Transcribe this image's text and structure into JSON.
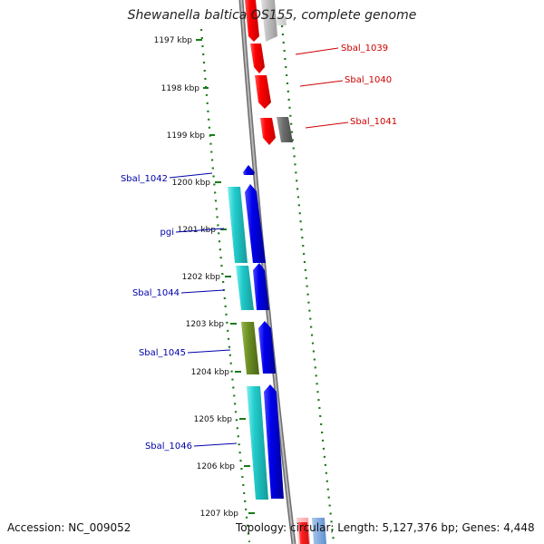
{
  "title": "Shewanella baltica OS155, complete genome",
  "accession": "Accession: NC_009052",
  "topology": "Topology: circular; Length: 5,127,376 bp; Genes: 4,448",
  "kbp_labels": [
    "1197 kbp",
    "1198 kbp",
    "1199 kbp",
    "1200 kbp",
    "1201 kbp",
    "1202 kbp",
    "1203 kbp",
    "1204 kbp",
    "1205 kbp",
    "1206 kbp",
    "1207 kbp"
  ],
  "gene_labels_right": [
    "Sbal_1039",
    "Sbal_1040",
    "Sbal_1041"
  ],
  "gene_labels_left": [
    "Sbal_1042",
    "pgi",
    "Sbal_1044",
    "Sbal_1045",
    "Sbal_1046"
  ],
  "colors": {
    "forward_strand": "#ff0000",
    "reverse_strand": "#0000ee",
    "ortholog_cyan": "#22cccc",
    "ortholog_olive": "#6b8e23",
    "grey_gene": "#777777",
    "backbone": "#8c8c8c",
    "tick_dots": "#1a7a1a",
    "right_label_color": "#cc0000",
    "left_label_color": "#0000aa"
  }
}
